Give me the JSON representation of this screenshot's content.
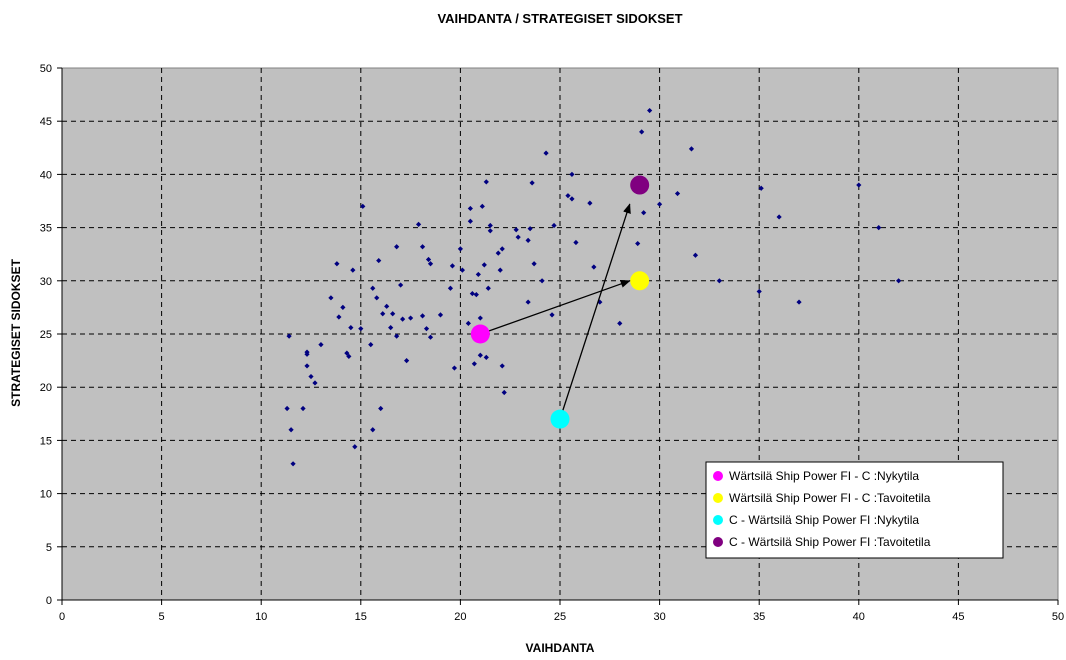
{
  "chart_data": {
    "type": "scatter",
    "title": "VAIHDANTA / STRATEGISET SIDOKSET",
    "xlabel": "VAIHDANTA",
    "ylabel": "STRATEGISET SIDOKSET",
    "xlim": [
      0,
      50
    ],
    "ylim": [
      0,
      50
    ],
    "xticks": [
      "0",
      "5",
      "10",
      "15",
      "20",
      "25",
      "30",
      "35",
      "40",
      "45",
      "50"
    ],
    "yticks": [
      "0",
      "5",
      "10",
      "15",
      "20",
      "25",
      "30",
      "35",
      "40",
      "45",
      "50"
    ],
    "grid": true,
    "grid_style": "dashed",
    "plot_background": "#c0c0c0",
    "legend_position": "bottom-right",
    "series": [
      {
        "color": "#000080",
        "marker": "diamond",
        "points": [
          [
            11.3,
            18
          ],
          [
            11.4,
            24.8
          ],
          [
            11.5,
            16
          ],
          [
            11.6,
            12.8
          ],
          [
            12.1,
            18
          ],
          [
            12.3,
            23.3
          ],
          [
            12.3,
            23.1
          ],
          [
            12.3,
            22
          ],
          [
            12.5,
            21
          ],
          [
            12.7,
            20.4
          ],
          [
            13.0,
            24
          ],
          [
            13.5,
            28.4
          ],
          [
            13.8,
            31.6
          ],
          [
            13.9,
            26.6
          ],
          [
            14.1,
            27.5
          ],
          [
            14.3,
            23.2
          ],
          [
            14.4,
            22.9
          ],
          [
            14.5,
            25.6
          ],
          [
            14.6,
            31
          ],
          [
            14.7,
            14.4
          ],
          [
            15.0,
            25.5
          ],
          [
            15.1,
            37
          ],
          [
            15.5,
            24
          ],
          [
            15.6,
            29.3
          ],
          [
            15.6,
            16
          ],
          [
            15.8,
            28.4
          ],
          [
            15.9,
            31.9
          ],
          [
            16.0,
            18
          ],
          [
            16.1,
            26.9
          ],
          [
            16.3,
            27.6
          ],
          [
            16.5,
            25.6
          ],
          [
            16.6,
            26.9
          ],
          [
            16.8,
            24.8
          ],
          [
            16.8,
            33.2
          ],
          [
            17.0,
            29.6
          ],
          [
            17.1,
            26.4
          ],
          [
            17.3,
            22.5
          ],
          [
            17.5,
            26.5
          ],
          [
            17.9,
            35.3
          ],
          [
            18.1,
            26.7
          ],
          [
            18.1,
            33.2
          ],
          [
            18.3,
            25.5
          ],
          [
            18.4,
            32
          ],
          [
            18.5,
            31.6
          ],
          [
            18.5,
            24.7
          ],
          [
            19.0,
            26.8
          ],
          [
            19.5,
            29.3
          ],
          [
            19.6,
            31.4
          ],
          [
            19.7,
            21.8
          ],
          [
            20.0,
            33
          ],
          [
            20.1,
            31
          ],
          [
            20.4,
            26
          ],
          [
            20.5,
            35.6
          ],
          [
            20.5,
            36.8
          ],
          [
            20.6,
            28.8
          ],
          [
            20.7,
            22.2
          ],
          [
            20.8,
            28.7
          ],
          [
            20.9,
            24.8
          ],
          [
            20.9,
            30.6
          ],
          [
            21.0,
            26.5
          ],
          [
            21.0,
            23
          ],
          [
            21.1,
            37
          ],
          [
            21.2,
            31.5
          ],
          [
            21.3,
            39.3
          ],
          [
            21.3,
            22.8
          ],
          [
            21.4,
            29.3
          ],
          [
            21.5,
            34.7
          ],
          [
            21.5,
            35.2
          ],
          [
            21.9,
            32.6
          ],
          [
            22.0,
            31
          ],
          [
            22.1,
            33
          ],
          [
            22.1,
            22
          ],
          [
            22.2,
            19.5
          ],
          [
            22.8,
            34.8
          ],
          [
            22.9,
            34.1
          ],
          [
            23.4,
            33.8
          ],
          [
            23.4,
            28
          ],
          [
            23.5,
            34.9
          ],
          [
            23.6,
            39.2
          ],
          [
            23.7,
            31.6
          ],
          [
            24.1,
            30
          ],
          [
            24.3,
            42
          ],
          [
            24.6,
            26.8
          ],
          [
            24.7,
            35.2
          ],
          [
            25.4,
            38
          ],
          [
            25.6,
            37.7
          ],
          [
            25.6,
            40
          ],
          [
            25.8,
            33.6
          ],
          [
            26.5,
            37.3
          ],
          [
            26.7,
            31.3
          ],
          [
            27.0,
            28
          ],
          [
            28.0,
            26
          ],
          [
            28.9,
            33.5
          ],
          [
            29.1,
            44
          ],
          [
            29.2,
            36.4
          ],
          [
            29.5,
            46
          ],
          [
            30.0,
            37.2
          ],
          [
            30.9,
            38.2
          ],
          [
            31.6,
            42.4
          ],
          [
            31.8,
            32.4
          ],
          [
            33.0,
            30
          ],
          [
            35.0,
            29
          ],
          [
            35.1,
            38.7
          ],
          [
            36.0,
            36
          ],
          [
            37.0,
            28
          ],
          [
            40.0,
            39
          ],
          [
            41.0,
            35
          ],
          [
            42.0,
            30
          ]
        ]
      },
      {
        "name": "Wärtsilä Ship Power FI - C :Nykytila",
        "color": "#ff00ff",
        "marker": "circle",
        "points": [
          [
            21,
            25
          ]
        ]
      },
      {
        "name": "Wärtsilä Ship Power FI - C :Tavoitetila",
        "color": "#ffff00",
        "marker": "circle",
        "points": [
          [
            29,
            30
          ]
        ]
      },
      {
        "name": "C - Wärtsilä Ship Power FI :Nykytila",
        "color": "#00ffff",
        "marker": "circle",
        "points": [
          [
            25,
            17
          ]
        ]
      },
      {
        "name": "C - Wärtsilä Ship Power FI :Tavoitetila",
        "color": "#800080",
        "marker": "circle",
        "points": [
          [
            29,
            39
          ]
        ]
      }
    ],
    "arrows": [
      {
        "from": [
          21,
          25
        ],
        "to": [
          28.5,
          30
        ]
      },
      {
        "from": [
          25,
          17
        ],
        "to": [
          28.5,
          37.2
        ]
      }
    ]
  }
}
